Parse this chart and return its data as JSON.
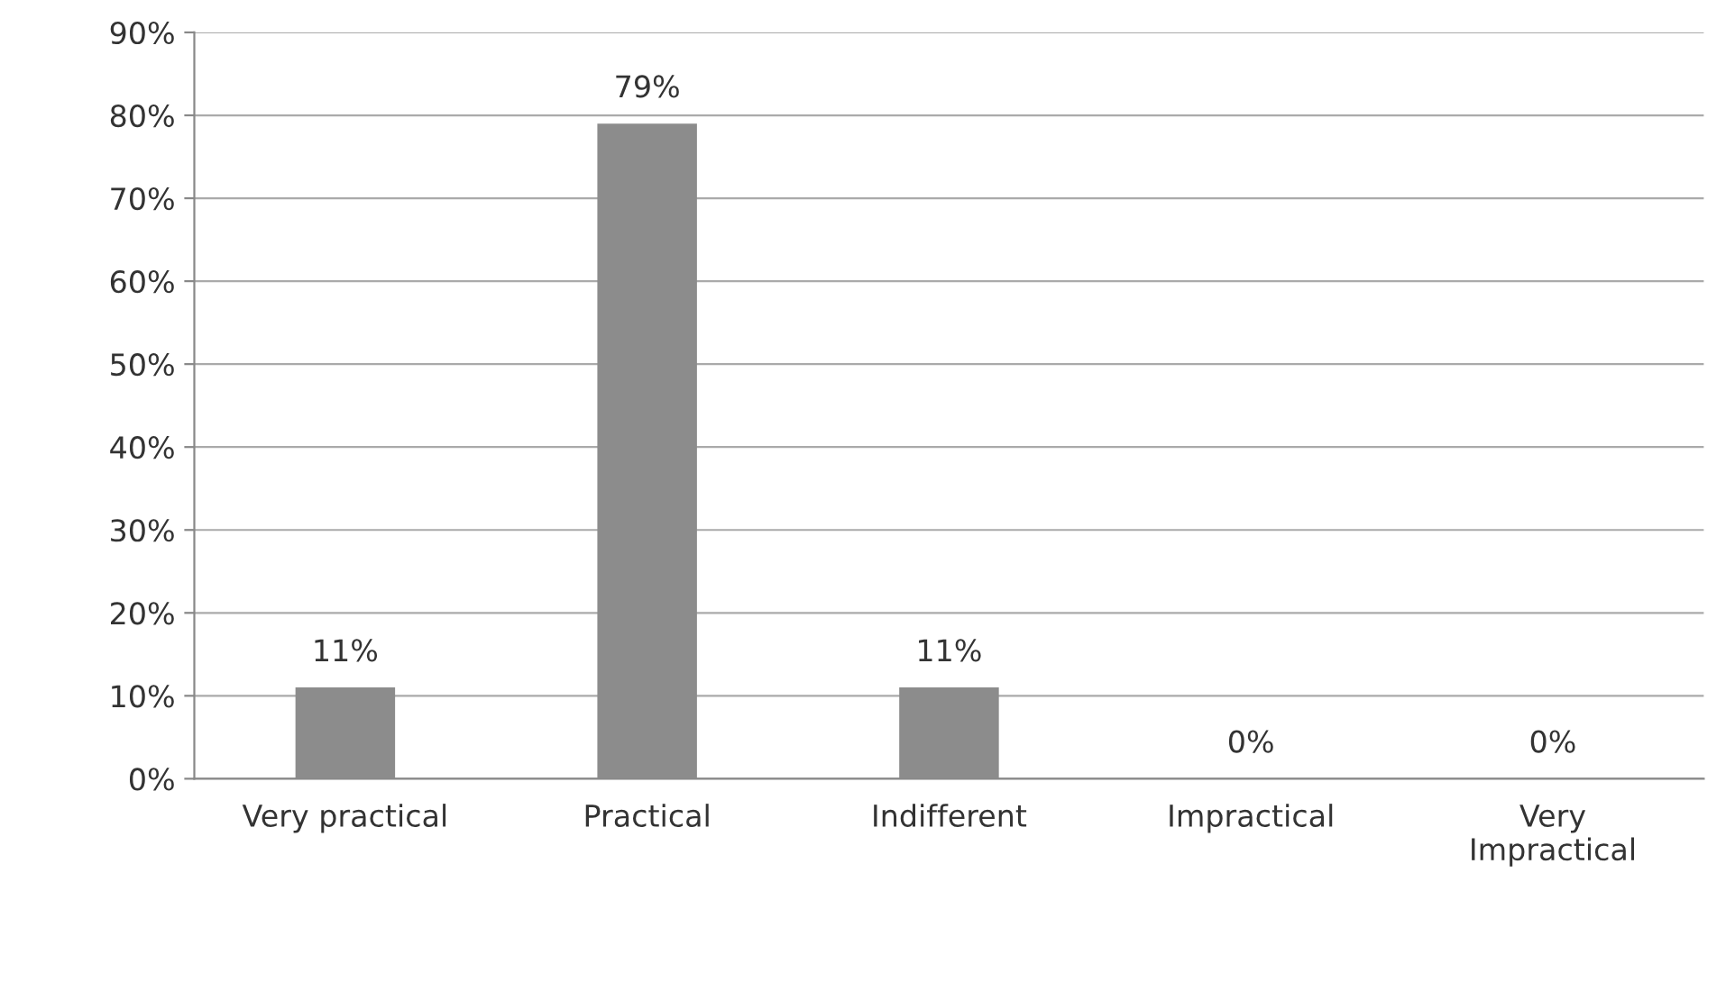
{
  "chart_data": {
    "type": "bar",
    "categories": [
      "Very practical",
      "Practical",
      "Indifferent",
      "Impractical",
      "Very\nImpractical"
    ],
    "values": [
      11,
      79,
      11,
      0,
      0
    ],
    "value_labels": [
      "11%",
      "79%",
      "11%",
      "0%",
      "0%"
    ],
    "color": "#8c8c8c",
    "ylim": [
      0,
      90
    ],
    "yticks": [
      {
        "value": 0,
        "label": "0%"
      },
      {
        "value": 10,
        "label": "10%"
      },
      {
        "value": 20,
        "label": "20%"
      },
      {
        "value": 30,
        "label": "30%"
      },
      {
        "value": 40,
        "label": "40%"
      },
      {
        "value": 50,
        "label": "50%"
      },
      {
        "value": 60,
        "label": "60%"
      },
      {
        "value": 70,
        "label": "70%"
      },
      {
        "value": 80,
        "label": "80%"
      },
      {
        "value": 90,
        "label": "90%"
      }
    ],
    "grid": "y"
  }
}
